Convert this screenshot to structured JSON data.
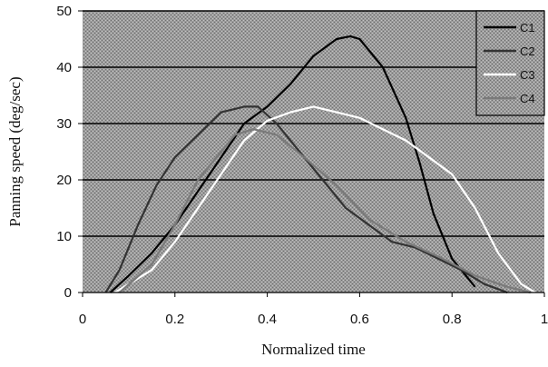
{
  "colors": {
    "plot_background": "#9b9b9b",
    "gridline": "#000000",
    "series": {
      "C1": "#000000",
      "C2": "#333333",
      "C3": "#ffffff",
      "C4": "#7a7a7a"
    }
  },
  "chart_data": {
    "type": "line",
    "title": "",
    "xlabel": "Normalized time",
    "ylabel": "Panning speed (deg/sec)",
    "xlim": [
      0,
      1
    ],
    "ylim": [
      0,
      50
    ],
    "x_ticks": [
      0,
      0.2,
      0.4,
      0.6,
      0.8,
      1
    ],
    "x_tick_labels": [
      "0",
      "0.2",
      "0.4",
      "0.6",
      "0.8",
      "1"
    ],
    "y_ticks": [
      0,
      10,
      20,
      30,
      40,
      50
    ],
    "y_tick_labels": [
      "0",
      "10",
      "20",
      "30",
      "40",
      "50"
    ],
    "grid": "horizontal",
    "legend_position": "top-right",
    "series": [
      {
        "name": "C1",
        "x": [
          0.06,
          0.1,
          0.15,
          0.2,
          0.25,
          0.3,
          0.35,
          0.4,
          0.45,
          0.5,
          0.55,
          0.58,
          0.6,
          0.65,
          0.7,
          0.73,
          0.76,
          0.8,
          0.85
        ],
        "y": [
          0,
          3,
          7,
          12,
          18,
          24,
          30,
          33,
          37,
          42,
          45,
          45.5,
          45,
          40,
          31,
          23,
          14,
          6,
          1
        ]
      },
      {
        "name": "C2",
        "x": [
          0.05,
          0.08,
          0.12,
          0.16,
          0.2,
          0.25,
          0.3,
          0.35,
          0.38,
          0.42,
          0.47,
          0.52,
          0.57,
          0.62,
          0.67,
          0.72,
          0.77,
          0.82,
          0.87,
          0.92
        ],
        "y": [
          0,
          4,
          12,
          19,
          24,
          28,
          32,
          33,
          33,
          30,
          25,
          20,
          15,
          12,
          9,
          8,
          6,
          4,
          1.5,
          0
        ]
      },
      {
        "name": "C3",
        "x": [
          0.07,
          0.1,
          0.15,
          0.2,
          0.25,
          0.3,
          0.35,
          0.4,
          0.45,
          0.5,
          0.55,
          0.6,
          0.65,
          0.7,
          0.75,
          0.8,
          0.85,
          0.9,
          0.95,
          0.98
        ],
        "y": [
          0,
          1.5,
          4,
          9,
          15,
          21,
          27,
          30.5,
          32,
          33,
          32,
          31,
          29,
          27,
          24,
          21,
          15,
          7,
          1.5,
          0
        ]
      },
      {
        "name": "C4",
        "x": [
          0.08,
          0.15,
          0.2,
          0.25,
          0.3,
          0.33,
          0.37,
          0.42,
          0.48,
          0.55,
          0.62,
          0.7,
          0.78,
          0.85,
          0.92,
          0.97
        ],
        "y": [
          0,
          5,
          12,
          20,
          25,
          28,
          29,
          28,
          24,
          19,
          13,
          9,
          6,
          3,
          1,
          0
        ]
      }
    ]
  }
}
